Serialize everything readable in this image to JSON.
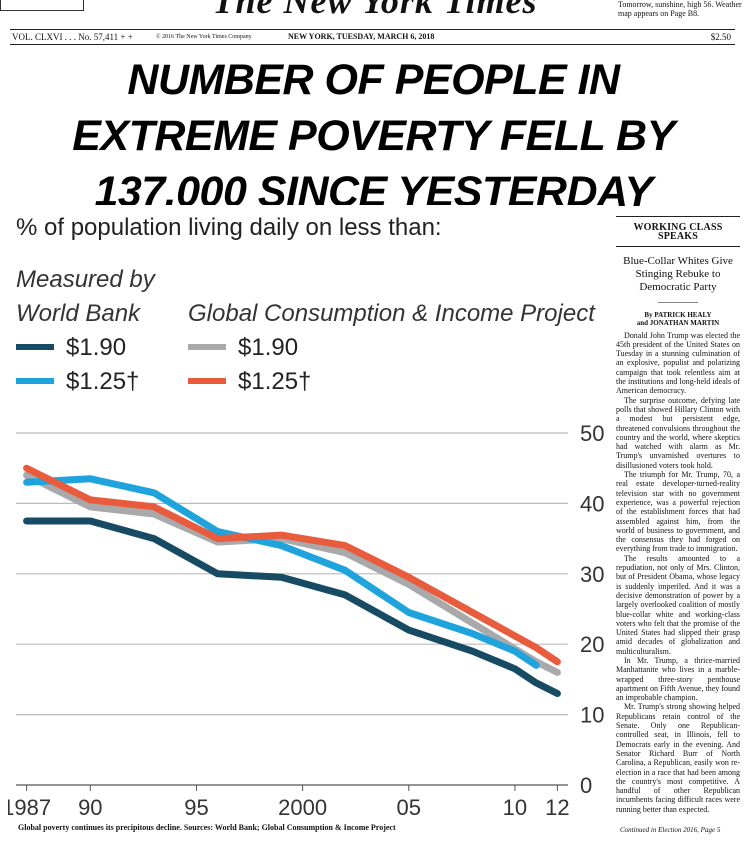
{
  "masthead": {
    "title": "The New York Times",
    "weather": "Tomorrow, sunshine, high 56. Weather map appears on Page B8."
  },
  "folio": {
    "volume": "VOL. CLXVI . . . No. 57,411 + +",
    "copyright": "© 2016 The New York Times Company",
    "dateline": "NEW YORK, TUESDAY, MARCH 6, 2018",
    "price": "$2.50"
  },
  "headline": {
    "line1": "NUMBER OF PEOPLE IN",
    "line2": "EXTREME POVERTY FELL BY",
    "line3": "137,000 SINCE YESTERDAY"
  },
  "chart_data": {
    "type": "line",
    "title": "% of population living daily on less than:",
    "group_labels": [
      "Measured by World Bank",
      "Global Consumption & Income Project"
    ],
    "group_label_lines": {
      "world_bank": [
        "Measured by",
        "World Bank"
      ],
      "gcip": [
        "Global Consumption & Income Project"
      ]
    },
    "legend": [
      {
        "group": "World Bank",
        "label": "$1.90",
        "color": "#174a63"
      },
      {
        "group": "World Bank",
        "label": "$1.25†",
        "color": "#1fa3dd"
      },
      {
        "group": "Global Consumption & Income Project",
        "label": "$1.90",
        "color": "#a9a9ab"
      },
      {
        "group": "Global Consumption & Income Project",
        "label": "$1.25†",
        "color": "#e95b3d"
      }
    ],
    "x_ticks": [
      "1987",
      "90",
      "95",
      "2000",
      "05",
      "10",
      "12"
    ],
    "x_tick_values": [
      1987,
      1990,
      1995,
      2000,
      2005,
      2010,
      2012
    ],
    "xlim": [
      1986.5,
      2012.5
    ],
    "ylim": [
      0,
      50
    ],
    "y_ticks": [
      0,
      10,
      20,
      30,
      40,
      50
    ],
    "grid": true,
    "series": [
      {
        "name": "GCIP $1.90",
        "color": "#a9a9ab",
        "x": [
          1987,
          1990,
          1993,
          1996,
          1999,
          2002,
          2005,
          2008,
          2011,
          2012
        ],
        "values": [
          44,
          39.5,
          38.5,
          34.5,
          35,
          33,
          28.5,
          23,
          17.5,
          16
        ]
      },
      {
        "name": "World Bank $1.25†",
        "color": "#1fa3dd",
        "x": [
          1987,
          1990,
          1993,
          1996,
          1999,
          2002,
          2005,
          2008,
          2010,
          2011
        ],
        "values": [
          43,
          43.5,
          41.5,
          36,
          34,
          30.5,
          24.5,
          21.5,
          19,
          17
        ]
      },
      {
        "name": "GCIP $1.25†",
        "color": "#e95b3d",
        "x": [
          1987,
          1990,
          1993,
          1996,
          1999,
          2002,
          2005,
          2008,
          2011,
          2012
        ],
        "values": [
          45,
          40.5,
          39.5,
          35,
          35.5,
          34,
          29.5,
          24.5,
          19.5,
          17.5
        ]
      },
      {
        "name": "World Bank $1.90",
        "color": "#174a63",
        "x": [
          1987,
          1990,
          1993,
          1996,
          1999,
          2002,
          2005,
          2008,
          2010,
          2011,
          2012
        ],
        "values": [
          37.5,
          37.5,
          35,
          30,
          29.5,
          27,
          22,
          19,
          16.5,
          14.5,
          13
        ]
      }
    ]
  },
  "caption": "Global poverty continues its precipitous decline. Sources: World Bank; Global Consumption & Income Project",
  "side_story": {
    "kicker": "WORKING CLASS SPEAKS",
    "deck": "Blue-Collar Whites Give Stinging Rebuke to Democratic Party",
    "byline1": "By PATRICK HEALY",
    "byline2": "and JONATHAN MARTIN",
    "paragraphs": [
      "Donald John Trump was elected the 45th president of the United States on Tuesday in a stunning culmination of an explosive, populist and polarizing campaign that took relentless aim at the institutions and long-held ideals of American democracy.",
      "The surprise outcome, defying late polls that showed Hillary Clinton with a modest but persistent edge, threatened convulsions throughout the country and the world, where skeptics had watched with alarm as Mr. Trump's unvarnished overtures to disillusioned voters took hold.",
      "The triumph for Mr. Trump, 70, a real estate developer-turned-reality television star with no government experience, was a powerful rejection of the establishment forces that had assembled against him, from the world of business to government, and the consensus they had forged on everything from trade to immigration.",
      "The results amounted to a repudiation, not only of Mrs. Clinton, but of President Obama, whose legacy is suddenly imperiled. And it was a decisive demonstration of power by a largely overlooked coalition of mostly blue-collar white and working-class voters who felt that the promise of the United States had slipped their grasp amid decades of globalization and multiculturalism.",
      "In Mr. Trump, a thrice-married Manhattanite who lives in a marble-wrapped three-story penthouse apartment on Fifth Avenue, they found an improbable champion.",
      "Mr. Trump's strong showing helped Republicans retain control of the Senate. Only one Republican-controlled seat, in Illinois, fell to Democrats early in the evening. And Senator Richard Burr of North Carolina, a Republican, easily won re-election in a race that had been among the country's most competitive. A handful of other Republican incumbents facing difficult races were running better than expected."
    ],
    "continued": "Continued in Election 2016, Page 5"
  }
}
